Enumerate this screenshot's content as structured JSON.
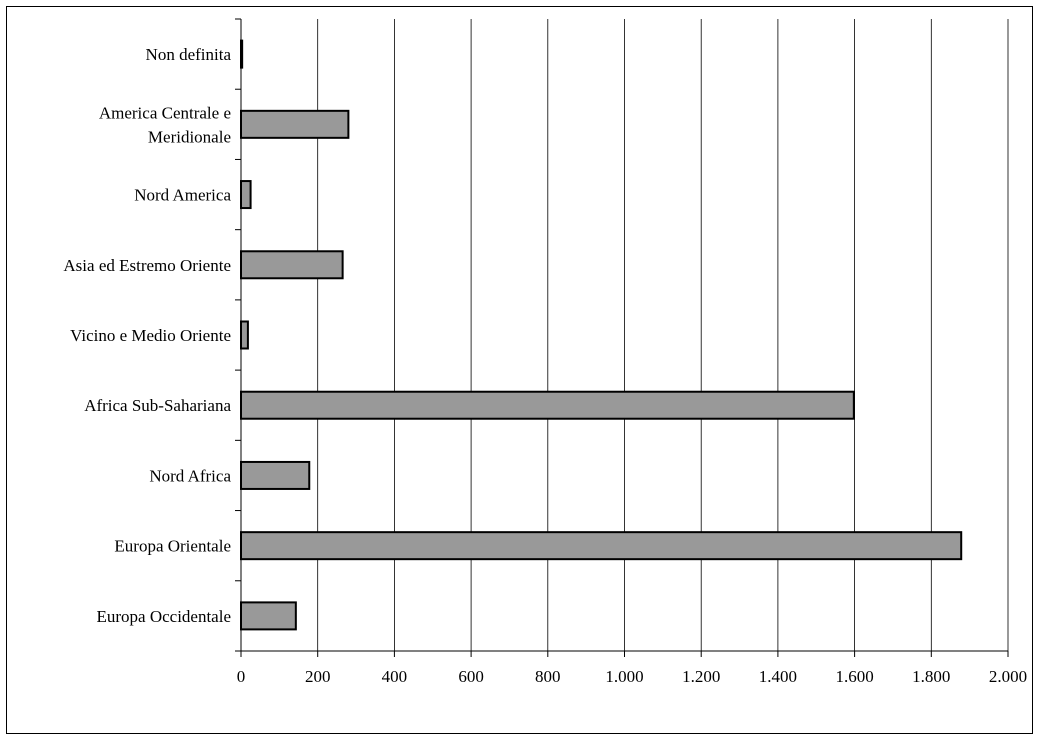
{
  "chart_data": {
    "type": "bar",
    "orientation": "horizontal",
    "categories": [
      "Non definita",
      "America Centrale e Meridionale",
      "Nord America",
      "Asia ed Estremo Oriente",
      "Vicino e Medio Oriente",
      "Africa Sub-Sahariana",
      "Nord Africa",
      "Europa Orientale",
      "Europa Occidentale"
    ],
    "values": [
      3,
      280,
      25,
      265,
      18,
      1598,
      178,
      1878,
      143
    ],
    "xticks": [
      "0",
      "200",
      "400",
      "600",
      "800",
      "1.000",
      "1.200",
      "1.400",
      "1.600",
      "1.800",
      "2.000"
    ],
    "xlim": [
      0,
      2000
    ],
    "grid": "vertical",
    "bar_color": "#999999",
    "bar_edge_color": "#000000",
    "title": "",
    "xlabel": "",
    "ylabel": ""
  }
}
